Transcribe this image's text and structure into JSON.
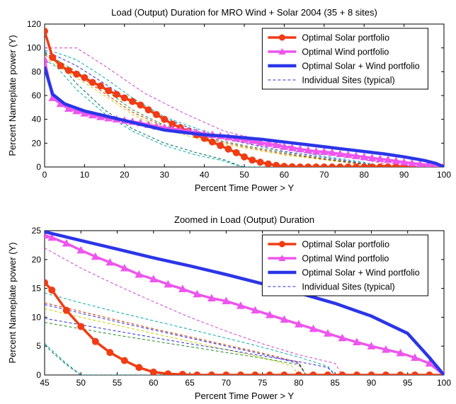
{
  "chart_data": [
    {
      "type": "line",
      "title": "Load (Output) Duration for MRO Wind + Solar 2004 (35 + 8 sites)",
      "xlabel": "Percent Time Power > Y",
      "ylabel": "Percent Nameplate power (Y)",
      "xlim": [
        0,
        100
      ],
      "ylim": [
        0,
        120
      ],
      "xticks": [
        0,
        10,
        20,
        30,
        40,
        50,
        60,
        70,
        80,
        90,
        100
      ],
      "yticks": [
        0,
        20,
        40,
        60,
        80,
        100,
        120
      ],
      "legend_position": "top-right",
      "grid": false,
      "series": [
        {
          "name": "Optimal Solar portfolio",
          "color": "#f03c14",
          "marker": "circle",
          "x": [
            0,
            2,
            4,
            6,
            8,
            10,
            12,
            14,
            16,
            18,
            20,
            22,
            24,
            26,
            28,
            30,
            32,
            34,
            36,
            38,
            40,
            42,
            44,
            46,
            48,
            50,
            52,
            54,
            56,
            58,
            60,
            62,
            64,
            66,
            68,
            70,
            72,
            74,
            76,
            78,
            80,
            82,
            84,
            86,
            88,
            90,
            92,
            94,
            96,
            98,
            100
          ],
          "y": [
            114,
            92,
            85,
            81,
            78,
            75,
            71,
            68,
            64,
            61,
            58,
            55,
            52,
            48,
            44,
            40,
            36,
            33,
            30,
            27,
            24,
            21,
            18,
            15,
            12,
            8.5,
            5.8,
            4,
            2.5,
            1.3,
            0.5,
            0.2,
            0,
            0,
            0,
            0,
            0,
            0,
            0,
            0,
            0,
            0,
            0,
            0,
            0,
            0,
            0,
            0,
            0,
            0,
            0
          ]
        },
        {
          "name": "Optimal Wind portfolio",
          "color": "#ee55ee",
          "marker": "triangle",
          "x": [
            0,
            2,
            4,
            6,
            8,
            10,
            12,
            14,
            16,
            18,
            20,
            22,
            24,
            26,
            28,
            30,
            32,
            34,
            36,
            38,
            40,
            42,
            44,
            46,
            48,
            50,
            52,
            54,
            56,
            58,
            60,
            62,
            64,
            66,
            68,
            70,
            72,
            74,
            76,
            78,
            80,
            82,
            84,
            86,
            88,
            90,
            92,
            94,
            96,
            98,
            100
          ],
          "y": [
            90,
            58,
            53,
            49,
            47,
            45,
            43.5,
            42,
            41,
            40,
            39,
            38,
            37,
            35.5,
            34,
            33,
            32,
            31,
            30,
            29,
            28,
            27,
            26,
            25,
            24,
            23,
            22,
            20.5,
            19.5,
            18.5,
            17,
            16,
            15,
            14,
            13,
            12.8,
            12,
            11,
            10.2,
            9.3,
            8.4,
            7.5,
            6.8,
            6,
            5,
            4,
            3.2,
            2.5,
            1.8,
            1,
            0
          ]
        },
        {
          "name": "Optimal Solar + Wind portfolio",
          "color": "#2a35e8",
          "marker": "none",
          "x": [
            0,
            2,
            5,
            10,
            15,
            20,
            25,
            30,
            35,
            40,
            45,
            50,
            55,
            60,
            65,
            70,
            75,
            80,
            85,
            90,
            95,
            98,
            100
          ],
          "y": [
            84,
            61,
            53,
            47,
            43,
            39,
            35,
            31,
            29,
            27,
            26,
            24.5,
            23,
            21,
            19,
            17,
            15,
            13,
            11,
            8.5,
            5.5,
            3,
            0
          ]
        }
      ],
      "individual_sites": {
        "name": "Individual Sites (typical)",
        "linestyle": "dashed",
        "lines": [
          {
            "color": "#cc44cc",
            "x": [
              0,
              3,
              8,
              15,
              25,
              35,
              45,
              55,
              65,
              75,
              85,
              87,
              100
            ],
            "y": [
              100,
              100,
              100,
              85,
              62,
              45,
              30,
              22,
              15,
              9,
              3,
              0,
              0
            ]
          },
          {
            "color": "#00aaaa",
            "x": [
              0,
              3,
              8,
              15,
              22,
              30,
              40,
              50,
              60,
              70,
              80,
              85,
              100
            ],
            "y": [
              98,
              96,
              90,
              75,
              58,
              42,
              30,
              22,
              15,
              9,
              4,
              0,
              0
            ]
          },
          {
            "color": "#2a2ad8",
            "x": [
              0,
              3,
              8,
              15,
              22,
              30,
              40,
              50,
              60,
              70,
              80,
              85,
              100
            ],
            "y": [
              97,
              93,
              85,
              70,
              55,
              41,
              28,
              20,
              13,
              8,
              3,
              0,
              0
            ]
          },
          {
            "color": "#228822",
            "x": [
              0,
              3,
              8,
              15,
              22,
              30,
              40,
              50,
              60,
              70,
              80,
              82,
              100
            ],
            "y": [
              95,
              90,
              80,
              65,
              48,
              35,
              25,
              18,
              12,
              7,
              2.5,
              0,
              0
            ]
          },
          {
            "color": "#cccc00",
            "x": [
              0,
              3,
              8,
              15,
              22,
              30,
              40,
              50,
              60,
              70,
              80,
              100
            ],
            "y": [
              92,
              85,
              75,
              60,
              44,
              32,
              22,
              16,
              10,
              6,
              2,
              0
            ]
          },
          {
            "color": "#cc3300",
            "x": [
              0,
              3,
              8,
              15,
              22,
              30,
              40,
              50,
              60,
              70,
              80,
              100
            ],
            "y": [
              94,
              88,
              78,
              62,
              46,
              34,
              24,
              17,
              11,
              6.5,
              2,
              0
            ]
          },
          {
            "color": "#006655",
            "x": [
              0,
              3,
              8,
              15,
              22,
              30,
              38,
              45,
              48,
              50,
              100
            ],
            "y": [
              96,
              90,
              70,
              48,
              32,
              20,
              12,
              6,
              2,
              0,
              0
            ]
          },
          {
            "color": "#00aaaa",
            "x": [
              0,
              3,
              8,
              15,
              22,
              30,
              38,
              45,
              48,
              50,
              100
            ],
            "y": [
              90,
              84,
              65,
              45,
              30,
              18,
              10,
              5,
              1.5,
              0,
              0
            ]
          }
        ]
      }
    },
    {
      "type": "line",
      "title": "Zoomed in Load (Output) Duration",
      "xlabel": "Percent Time Power > Y",
      "ylabel": "Percent Nameplate power (Y)",
      "xlim": [
        45,
        100
      ],
      "ylim": [
        0,
        25
      ],
      "xticks": [
        45,
        50,
        55,
        60,
        65,
        70,
        75,
        80,
        85,
        90,
        95,
        100
      ],
      "yticks": [
        0,
        5,
        10,
        15,
        20,
        25
      ],
      "legend_position": "top-right",
      "grid": false,
      "series": [
        {
          "name": "Optimal Solar portfolio",
          "color": "#f03c14",
          "marker": "circle",
          "x": [
            45,
            46,
            48,
            50,
            52,
            54,
            56,
            58,
            60,
            62,
            64,
            66,
            68,
            70,
            72,
            74,
            76,
            78,
            80,
            82,
            84,
            86,
            88,
            90,
            92,
            94,
            96,
            98,
            100
          ],
          "y": [
            16,
            14.7,
            11.2,
            8.4,
            5.8,
            3.9,
            2.5,
            1.3,
            0.5,
            0.2,
            0.1,
            0,
            0,
            0,
            0,
            0,
            0,
            0,
            0,
            0,
            0,
            0,
            0,
            0,
            0,
            0,
            0,
            0,
            0
          ]
        },
        {
          "name": "Optimal Wind portfolio",
          "color": "#ee55ee",
          "marker": "triangle",
          "x": [
            45,
            46,
            48,
            50,
            52,
            54,
            56,
            58,
            60,
            62,
            64,
            66,
            68,
            70,
            72,
            74,
            76,
            78,
            80,
            82,
            84,
            86,
            88,
            90,
            92,
            94,
            96,
            98,
            100
          ],
          "y": [
            24.2,
            23.8,
            22.8,
            21.6,
            20.5,
            19.5,
            18.5,
            17.4,
            16.6,
            15.7,
            14.9,
            14,
            13.3,
            12.8,
            12,
            11.2,
            10.4,
            9.6,
            8.8,
            8,
            7.2,
            6.4,
            5.7,
            5,
            4.4,
            3.8,
            3,
            2,
            0
          ]
        },
        {
          "name": "Optimal Solar + Wind portfolio",
          "color": "#2a35e8",
          "marker": "none",
          "x": [
            45,
            50,
            55,
            60,
            65,
            70,
            75,
            80,
            85,
            90,
            95,
            98,
            100
          ],
          "y": [
            24.8,
            23.3,
            21.8,
            20.3,
            18.9,
            17.4,
            15.8,
            14.2,
            12.4,
            10.2,
            7.2,
            3,
            0
          ]
        }
      ],
      "individual_sites": {
        "name": "Individual Sites (typical)",
        "linestyle": "dashed",
        "lines": [
          {
            "color": "#cc44cc",
            "x": [
              45,
              50,
              55,
              60,
              65,
              70,
              75,
              80,
              85,
              86,
              100
            ],
            "y": [
              22,
              18.5,
              15.5,
              12.7,
              10,
              7.6,
              5.4,
              3.5,
              2,
              0,
              0
            ]
          },
          {
            "color": "#00aaaa",
            "x": [
              45,
              50,
              55,
              60,
              65,
              70,
              75,
              80,
              84,
              85,
              100
            ],
            "y": [
              14.2,
              12.5,
              10.9,
              9.4,
              7.9,
              6.4,
              4.8,
              3.1,
              1.5,
              0,
              0
            ]
          },
          {
            "color": "#cc3300",
            "x": [
              45,
              50,
              55,
              60,
              65,
              70,
              75,
              80,
              81,
              100
            ],
            "y": [
              12.5,
              11,
              9.5,
              8,
              6.6,
              5.2,
              3.8,
              2.2,
              0,
              0
            ]
          },
          {
            "color": "#2a2ad8",
            "x": [
              45,
              50,
              55,
              60,
              65,
              70,
              75,
              80,
              81,
              100
            ],
            "y": [
              12.2,
              10.7,
              9.2,
              7.8,
              6.4,
              5,
              3.6,
              2,
              0,
              0
            ]
          },
          {
            "color": "#cccc00",
            "x": [
              45,
              50,
              55,
              60,
              65,
              70,
              75,
              79,
              80,
              100
            ],
            "y": [
              11.5,
              10,
              8.6,
              7.2,
              5.8,
              4.4,
              3,
              1.6,
              0,
              0
            ]
          },
          {
            "color": "#2a2ad8",
            "x": [
              45,
              50,
              55,
              60,
              65,
              70,
              75,
              80,
              84,
              85,
              100
            ],
            "y": [
              9.8,
              8.7,
              7.6,
              6.5,
              5.4,
              4.4,
              3.3,
              2.3,
              1.3,
              0,
              0
            ]
          },
          {
            "color": "#228822",
            "x": [
              45,
              50,
              55,
              60,
              65,
              70,
              75,
              80,
              81,
              100
            ],
            "y": [
              9.1,
              8,
              6.9,
              5.9,
              4.9,
              3.9,
              2.9,
              1.8,
              0,
              0
            ]
          },
          {
            "color": "#00aaaa",
            "x": [
              45,
              46,
              48,
              50,
              100
            ],
            "y": [
              5.5,
              4.3,
              2,
              0,
              0
            ]
          },
          {
            "color": "#006655",
            "x": [
              45,
              46,
              48,
              50,
              100
            ],
            "y": [
              5.2,
              4,
              1.8,
              0,
              0
            ]
          }
        ]
      }
    }
  ]
}
